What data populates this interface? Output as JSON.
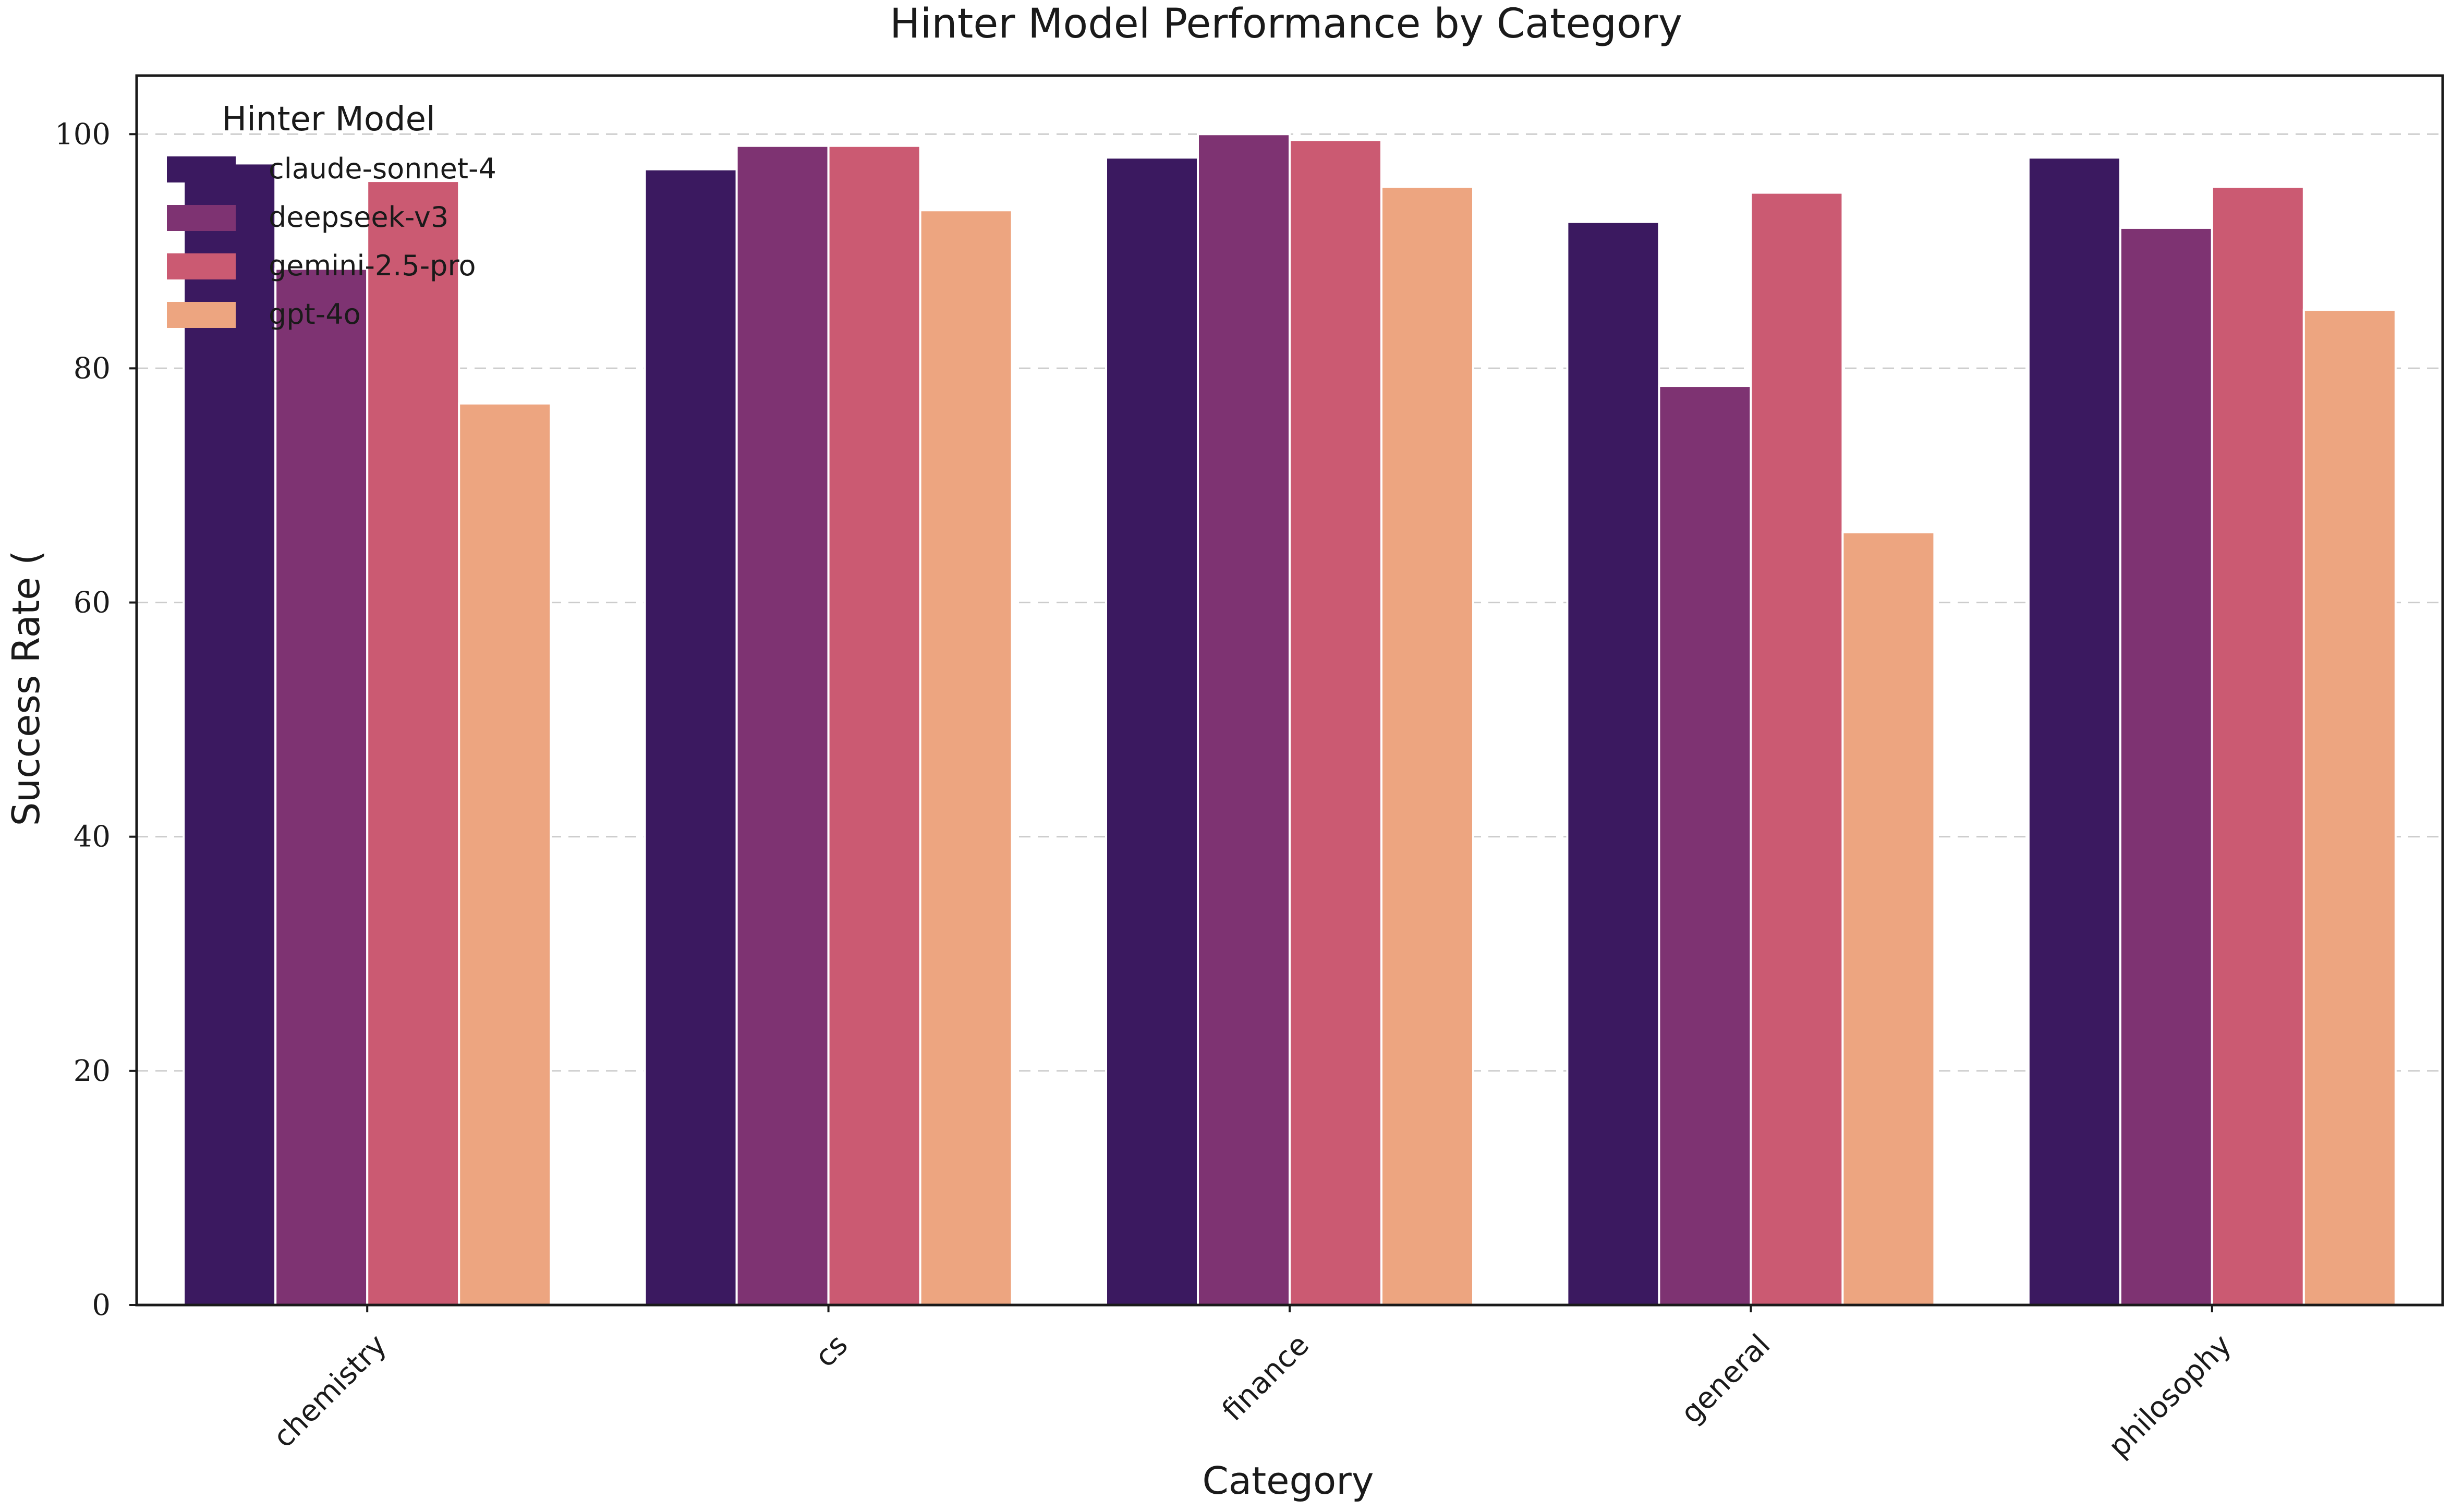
{
  "chart_data": {
    "type": "bar",
    "title": "Hinter Model Performance by Category",
    "xlabel": "Category",
    "ylabel": "Success Rate (",
    "ylim": [
      0,
      105
    ],
    "yticks": [
      0,
      20,
      40,
      60,
      80,
      100
    ],
    "grid": "y-dashed",
    "legend": {
      "title": "Hinter Model",
      "placement": "top-left"
    },
    "categories": [
      "chemistry",
      "cs",
      "finance",
      "general",
      "philosophy"
    ],
    "series": [
      {
        "name": "claude-sonnet-4",
        "color": "#3b1960",
        "values": [
          97.5,
          97.0,
          98.0,
          92.5,
          98.0
        ]
      },
      {
        "name": "deepseek-v3",
        "color": "#7e3372",
        "values": [
          88.5,
          99.0,
          100.0,
          78.5,
          92.0
        ]
      },
      {
        "name": "gemini-2.5-pro",
        "color": "#cb5a72",
        "values": [
          96.0,
          99.0,
          99.5,
          95.0,
          95.5
        ]
      },
      {
        "name": "gpt-4o",
        "color": "#eda580",
        "values": [
          77.0,
          93.5,
          95.5,
          66.0,
          85.0
        ]
      }
    ]
  }
}
